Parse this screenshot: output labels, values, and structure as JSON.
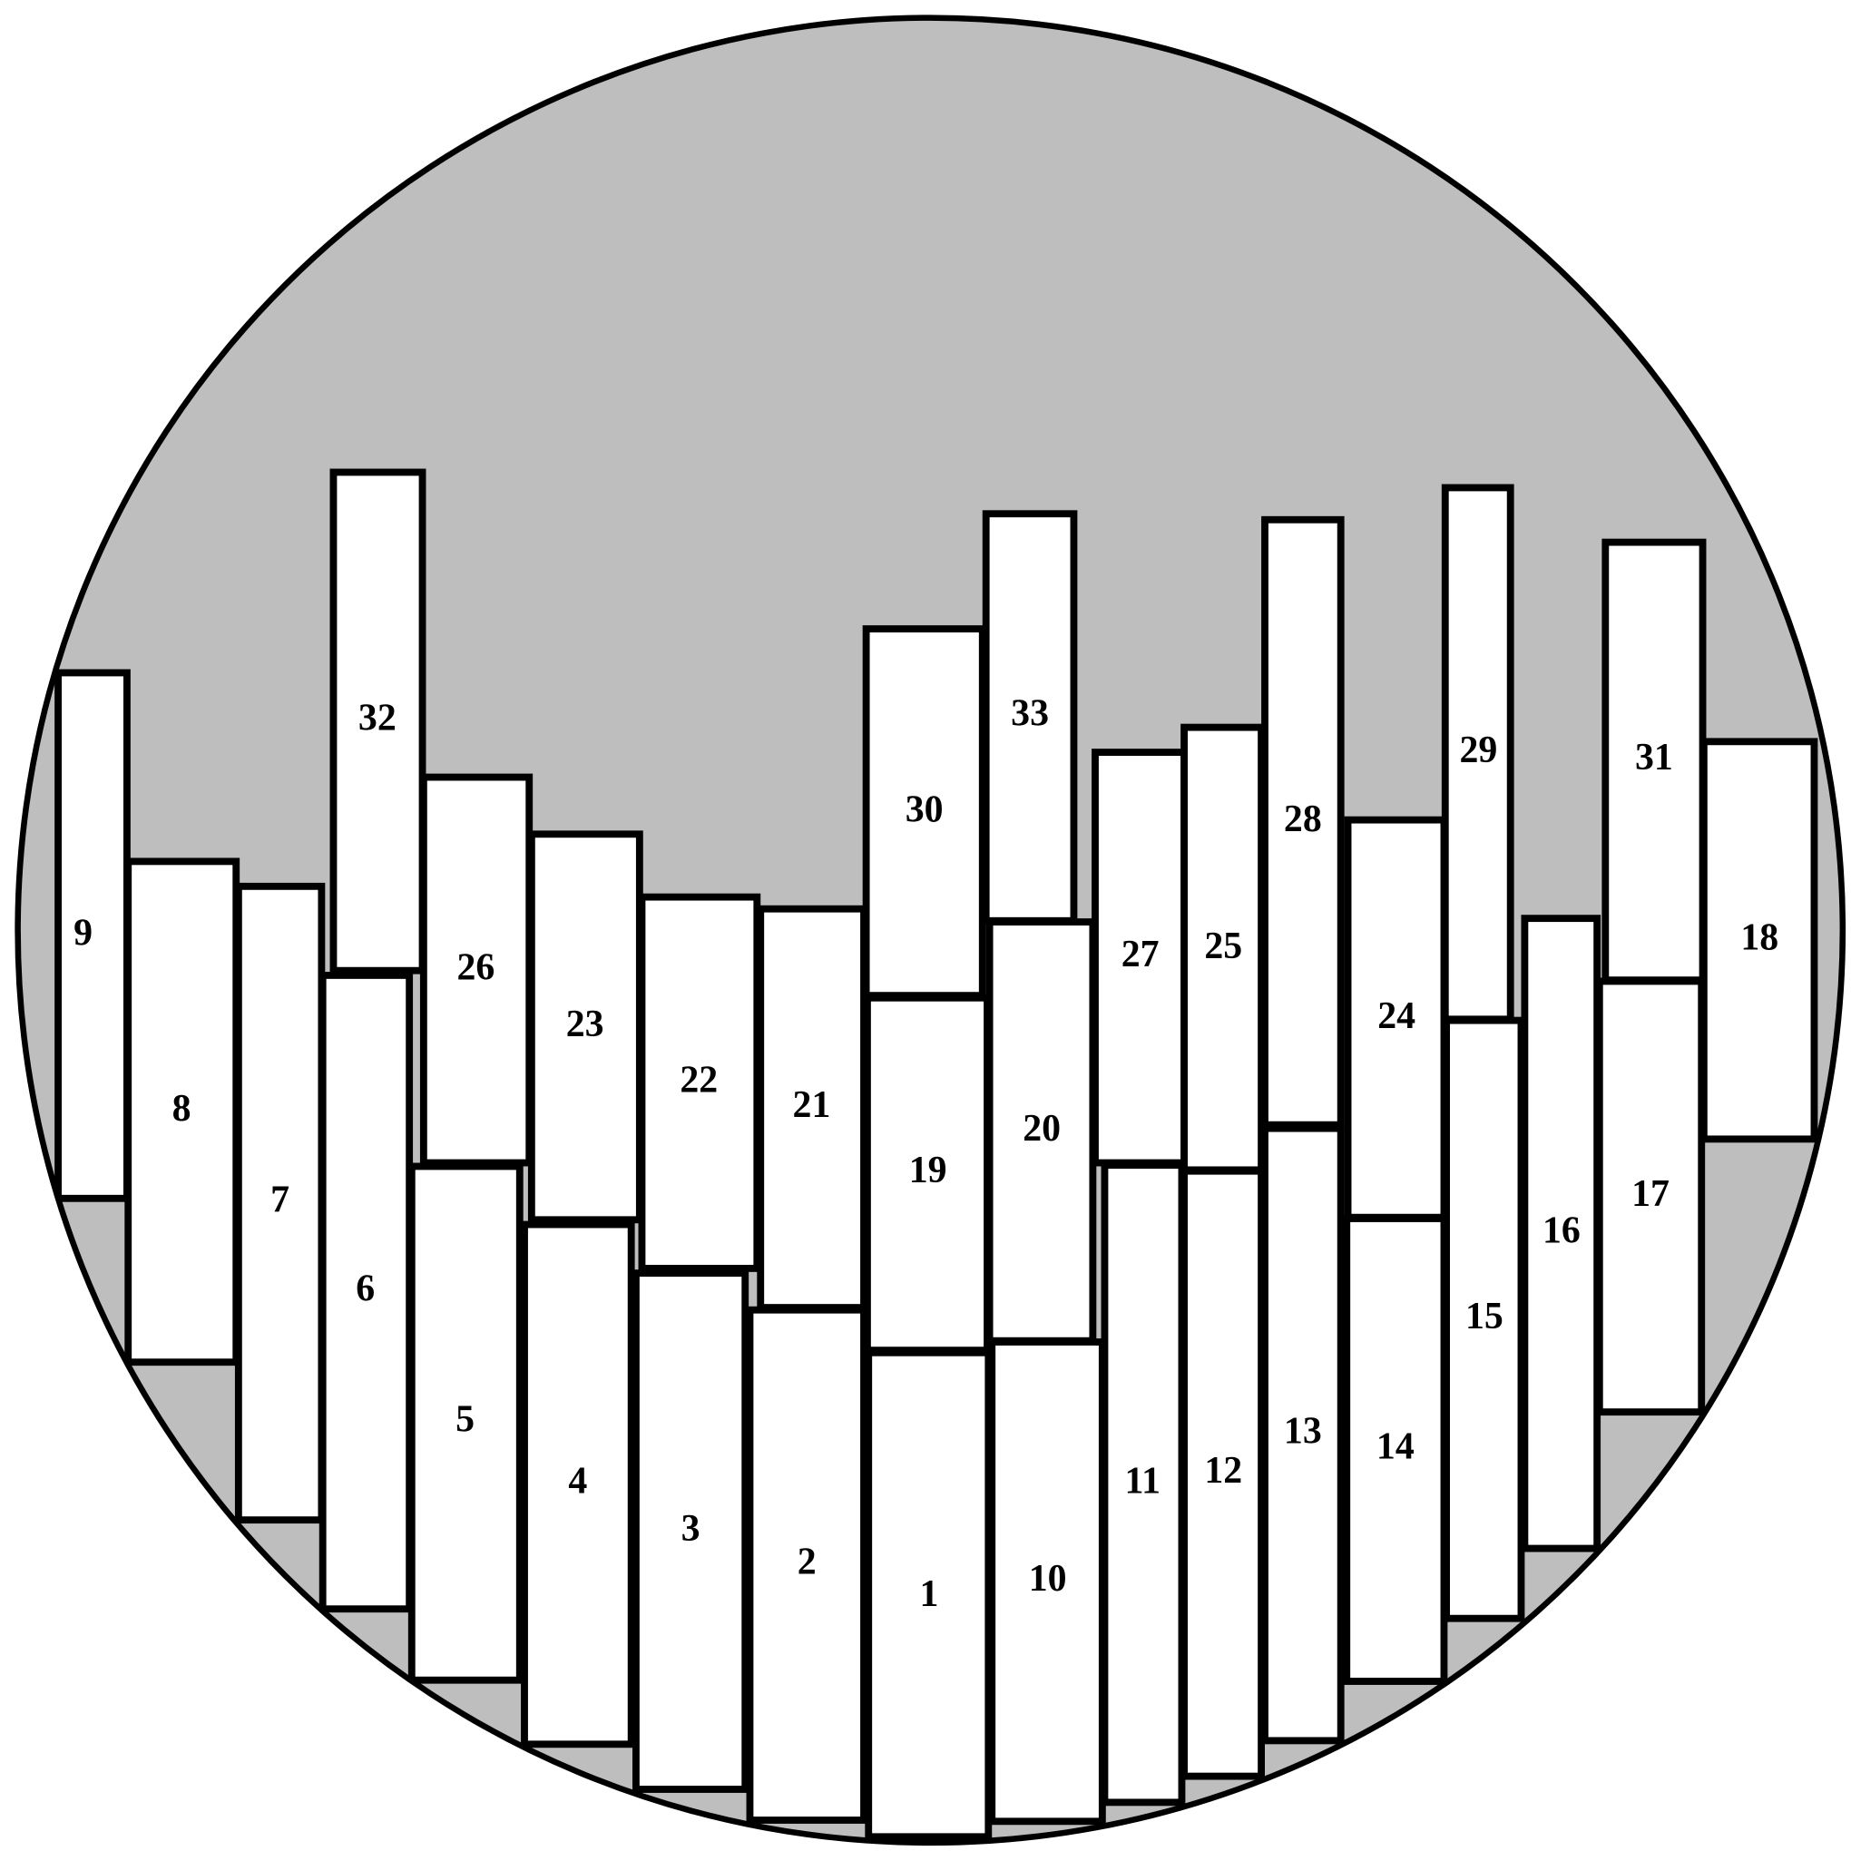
{
  "colors": {
    "background": "#bebebe",
    "rect_fill": "#ffffff",
    "stroke": "#000000"
  },
  "labels": [
    "9",
    "8",
    "7",
    "32",
    "6",
    "26",
    "5",
    "23",
    "4",
    "22",
    "3",
    "21",
    "2",
    "30",
    "19",
    "1",
    "33",
    "20",
    "10",
    "27",
    "11",
    "25",
    "12",
    "28",
    "13",
    "24",
    "14",
    "29",
    "15",
    "16",
    "31",
    "17",
    "18"
  ]
}
